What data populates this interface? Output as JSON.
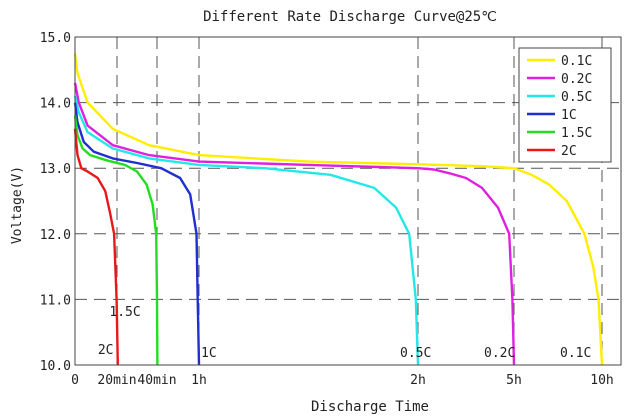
{
  "chart_data": {
    "type": "line",
    "title": "Different Rate Discharge Curve@25℃",
    "xlabel": "Discharge Time",
    "ylabel": "Voltage(V)",
    "ylim": [
      10.0,
      15.0
    ],
    "yticks": [
      "10.0",
      "11.0",
      "12.0",
      "13.0",
      "14.0",
      "15.0"
    ],
    "xticks": [
      {
        "label": "0",
        "hours": 0
      },
      {
        "label": "20min",
        "hours": 0.333
      },
      {
        "label": "40min",
        "hours": 0.667
      },
      {
        "label": "1h",
        "hours": 1
      },
      {
        "label": "2h",
        "hours": 2
      },
      {
        "label": "5h",
        "hours": 5
      },
      {
        "label": "10h",
        "hours": 10
      }
    ],
    "grid": "dashed",
    "legend_position": "top-right",
    "series": [
      {
        "name": "0.1C",
        "color": "#ffee00",
        "end_label": "0.1C",
        "points": [
          [
            0,
            14.75
          ],
          [
            0.02,
            14.45
          ],
          [
            0.1,
            14.0
          ],
          [
            0.3,
            13.6
          ],
          [
            0.6,
            13.35
          ],
          [
            1,
            13.2
          ],
          [
            1.5,
            13.1
          ],
          [
            2,
            13.06
          ],
          [
            2.7,
            13.05
          ],
          [
            4,
            13.03
          ],
          [
            5,
            13.0
          ],
          [
            6,
            12.9
          ],
          [
            7,
            12.75
          ],
          [
            8,
            12.5
          ],
          [
            9,
            12.0
          ],
          [
            9.5,
            11.5
          ],
          [
            9.8,
            11.0
          ],
          [
            10,
            10.0
          ]
        ]
      },
      {
        "name": "0.2C",
        "color": "#e020e0",
        "end_label": "0.2C",
        "points": [
          [
            0,
            14.3
          ],
          [
            0.03,
            14.0
          ],
          [
            0.1,
            13.65
          ],
          [
            0.3,
            13.35
          ],
          [
            0.6,
            13.2
          ],
          [
            1,
            13.1
          ],
          [
            1.5,
            13.05
          ],
          [
            2,
            13.0
          ],
          [
            2.5,
            12.98
          ],
          [
            3,
            12.92
          ],
          [
            3.5,
            12.85
          ],
          [
            4,
            12.7
          ],
          [
            4.5,
            12.4
          ],
          [
            4.85,
            12.0
          ],
          [
            4.95,
            11.0
          ],
          [
            5,
            10.0
          ]
        ]
      },
      {
        "name": "0.5C",
        "color": "#22e8e8",
        "end_label": "0.5C",
        "points": [
          [
            0,
            14.1
          ],
          [
            0.03,
            13.85
          ],
          [
            0.1,
            13.55
          ],
          [
            0.3,
            13.3
          ],
          [
            0.6,
            13.15
          ],
          [
            1,
            13.05
          ],
          [
            1.3,
            13.0
          ],
          [
            1.6,
            12.9
          ],
          [
            1.8,
            12.7
          ],
          [
            1.9,
            12.4
          ],
          [
            1.96,
            12.0
          ],
          [
            1.99,
            11.0
          ],
          [
            2,
            10.0
          ]
        ]
      },
      {
        "name": "1C",
        "color": "#1f2fd0",
        "end_label": "1C",
        "points": [
          [
            0,
            14.0
          ],
          [
            0.02,
            13.7
          ],
          [
            0.07,
            13.4
          ],
          [
            0.15,
            13.25
          ],
          [
            0.3,
            13.15
          ],
          [
            0.5,
            13.08
          ],
          [
            0.7,
            13.0
          ],
          [
            0.85,
            12.85
          ],
          [
            0.93,
            12.6
          ],
          [
            0.98,
            12.0
          ],
          [
            0.99,
            11.0
          ],
          [
            1,
            10.0
          ]
        ]
      },
      {
        "name": "1.5C",
        "color": "#22dd22",
        "end_label": "1.5C",
        "points": [
          [
            0,
            13.8
          ],
          [
            0.02,
            13.5
          ],
          [
            0.06,
            13.3
          ],
          [
            0.12,
            13.2
          ],
          [
            0.25,
            13.12
          ],
          [
            0.4,
            13.05
          ],
          [
            0.5,
            12.95
          ],
          [
            0.58,
            12.75
          ],
          [
            0.63,
            12.45
          ],
          [
            0.66,
            12.0
          ],
          [
            0.667,
            11.0
          ],
          [
            0.67,
            10.0
          ]
        ]
      },
      {
        "name": "2C",
        "color": "#e81818",
        "end_label": "2C",
        "points": [
          [
            0,
            13.6
          ],
          [
            0.02,
            13.2
          ],
          [
            0.05,
            13.0
          ],
          [
            0.1,
            12.95
          ],
          [
            0.18,
            12.85
          ],
          [
            0.24,
            12.65
          ],
          [
            0.28,
            12.3
          ],
          [
            0.31,
            12.0
          ],
          [
            0.33,
            11.0
          ],
          [
            0.34,
            10.0
          ]
        ]
      }
    ]
  }
}
